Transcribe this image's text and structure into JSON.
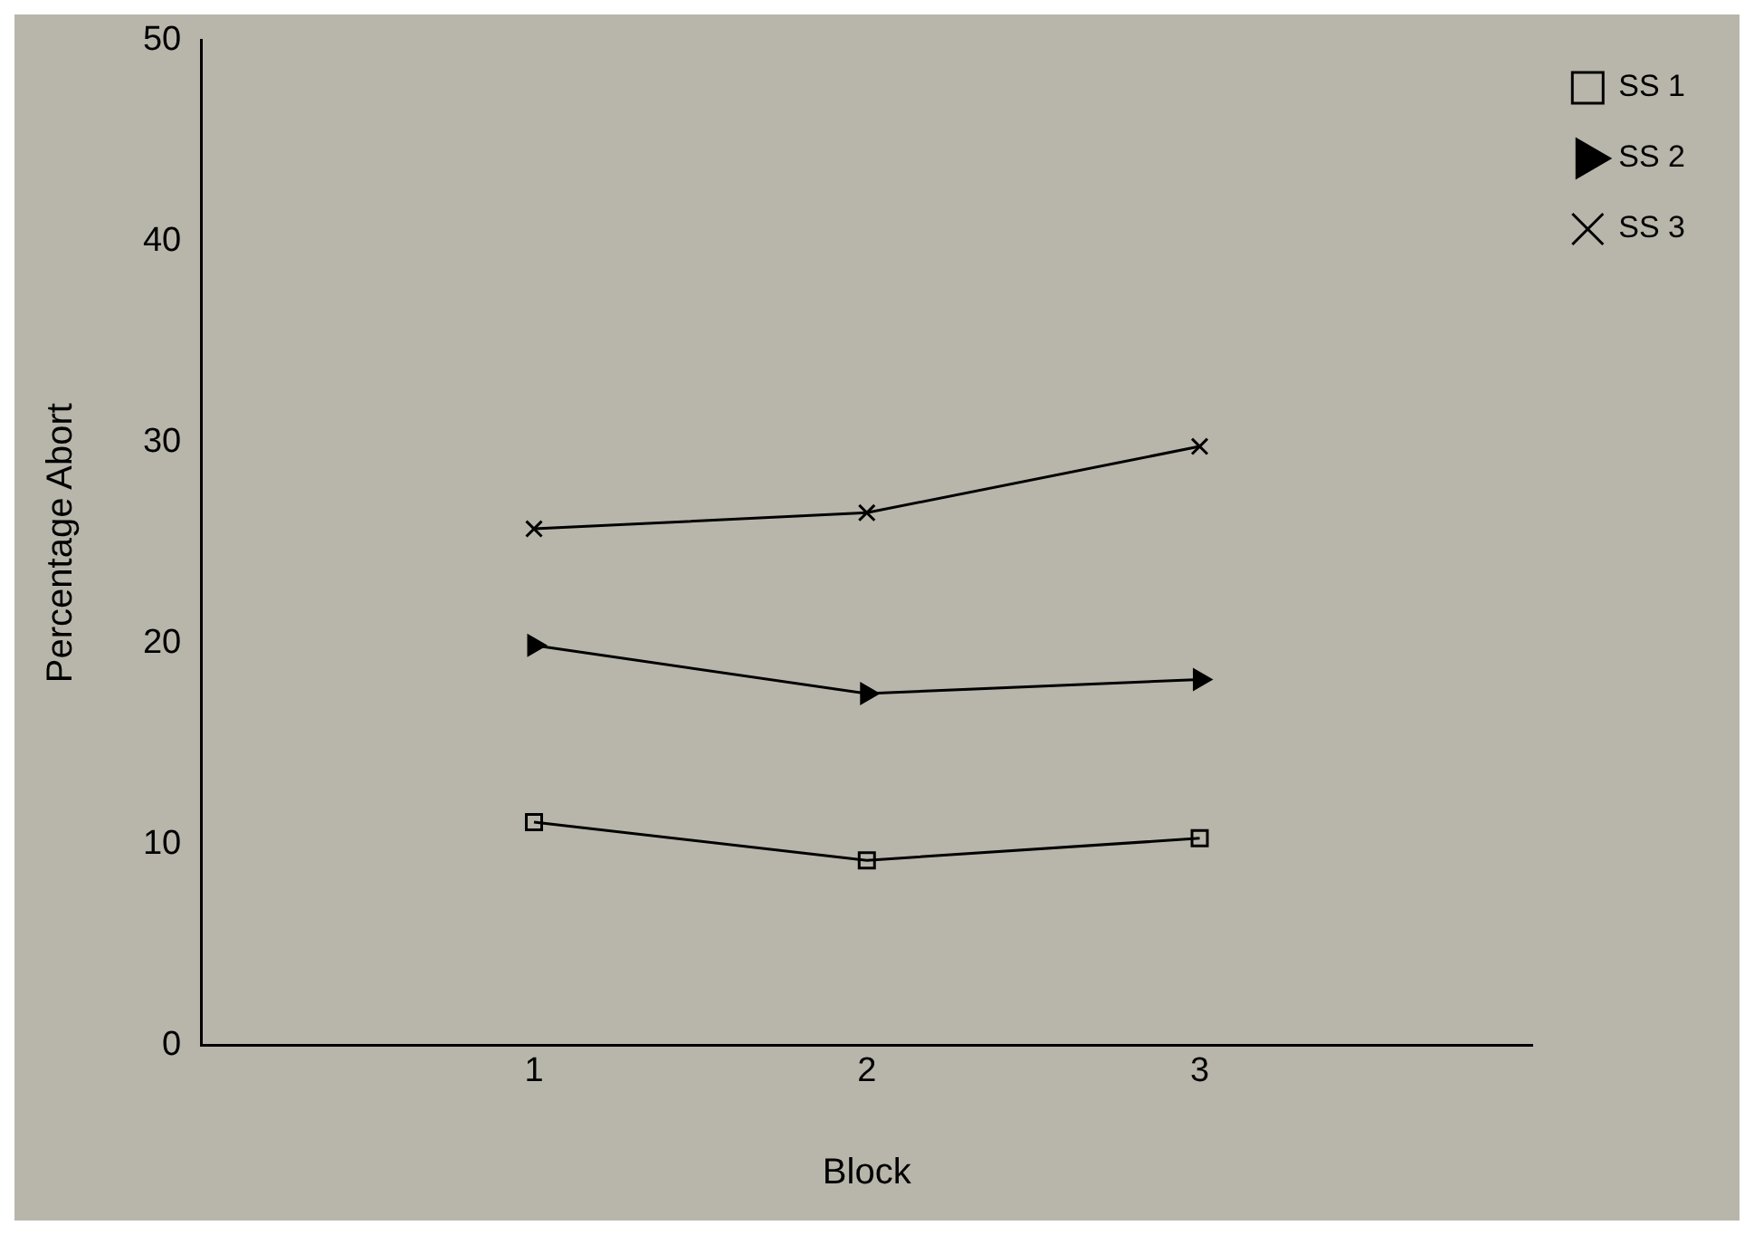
{
  "chart_data": {
    "type": "line",
    "xlabel": "Block",
    "ylabel": "Percentage Abort",
    "x": [
      1,
      2,
      3
    ],
    "xlim": [
      0,
      4
    ],
    "xticks": [
      1,
      2,
      3
    ],
    "ylim": [
      0,
      50
    ],
    "yticks": [
      0,
      10,
      20,
      30,
      40,
      50
    ],
    "grid": false,
    "legend": "top right",
    "series": [
      {
        "name": "SS 1",
        "color": "#000000",
        "marker": "square",
        "values": [
          11.1,
          9.2,
          10.3
        ]
      },
      {
        "name": "SS 2",
        "color": "#000000",
        "marker": "triangle",
        "values": [
          19.9,
          17.5,
          18.2
        ]
      },
      {
        "name": "SS 3",
        "color": "#000000",
        "marker": "cross",
        "values": [
          25.7,
          26.5,
          29.8
        ]
      }
    ]
  }
}
